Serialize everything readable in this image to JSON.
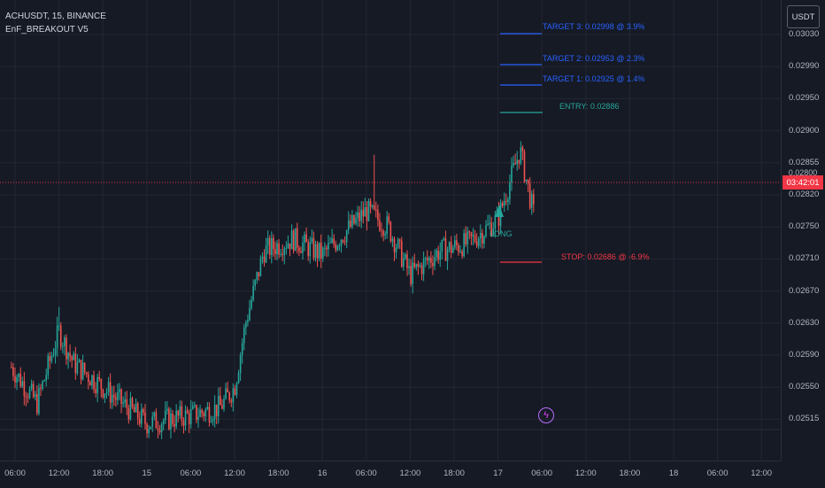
{
  "header": {
    "symbol_line": "ACHUSDT, 15, BINANCE",
    "indicator_name": "EnF_BREAKOUT V5"
  },
  "currency_button": "USDT",
  "price_axis": {
    "ticks": [
      "0.03030",
      "0.02990",
      "0.02950",
      "0.02900",
      "0.02855",
      "0.02820",
      "0.02750",
      "0.02710",
      "0.02670",
      "0.02630",
      "0.02590",
      "0.02550",
      "0.02515"
    ],
    "current_price_label": "0.02800",
    "countdown": "03:42:01"
  },
  "time_axis": {
    "ticks": [
      "06:00",
      "12:00",
      "18:00",
      "15",
      "06:00",
      "12:00",
      "18:00",
      "16",
      "06:00",
      "12:00",
      "18:00",
      "17",
      "06:00",
      "12:00",
      "18:00",
      "18",
      "06:00",
      "12:00"
    ]
  },
  "levels": {
    "target3": "TARGET 3: 0.02998 @ 3.9%",
    "target2": "TARGET 2: 0.02953 @ 2.3%",
    "target1": "TARGET 1: 0.02925 @ 1.4%",
    "entry": "ENTRY: 0.02886",
    "stop": "STOP: 0.02686 @ -6.9%",
    "signal": "LONG"
  },
  "colors": {
    "bull": "#26a69a",
    "bear": "#ef5350",
    "target": "#2962ff",
    "entry": "#26a69a",
    "stop": "#f23645",
    "grid": "#232733"
  },
  "chart_data": {
    "type": "candlestick",
    "symbol": "ACHUSDT",
    "timeframe": "15",
    "exchange": "BINANCE",
    "last_price": 0.028,
    "close_path": [
      {
        "x": "14 05:30",
        "y": 0.02615
      },
      {
        "x": "14 09:00",
        "y": 0.0257
      },
      {
        "x": "14 12:00",
        "y": 0.0266
      },
      {
        "x": "14 14:00",
        "y": 0.0262
      },
      {
        "x": "14 18:00",
        "y": 0.0259
      },
      {
        "x": "15 00:00",
        "y": 0.02545
      },
      {
        "x": "15 06:00",
        "y": 0.02555
      },
      {
        "x": "15 10:00",
        "y": 0.02565
      },
      {
        "x": "15 12:00",
        "y": 0.0259
      },
      {
        "x": "15 13:30",
        "y": 0.0267
      },
      {
        "x": "15 16:00",
        "y": 0.0276
      },
      {
        "x": "15 20:00",
        "y": 0.02775
      },
      {
        "x": "16 00:00",
        "y": 0.02755
      },
      {
        "x": "16 06:00",
        "y": 0.0281
      },
      {
        "x": "16 09:00",
        "y": 0.0279
      },
      {
        "x": "16 12:00",
        "y": 0.0273
      },
      {
        "x": "16 16:00",
        "y": 0.0276
      },
      {
        "x": "16 20:00",
        "y": 0.0277
      },
      {
        "x": "17 00:00",
        "y": 0.028
      },
      {
        "x": "17 03:00",
        "y": 0.02886
      },
      {
        "x": "17 05:00",
        "y": 0.028
      }
    ]
  }
}
